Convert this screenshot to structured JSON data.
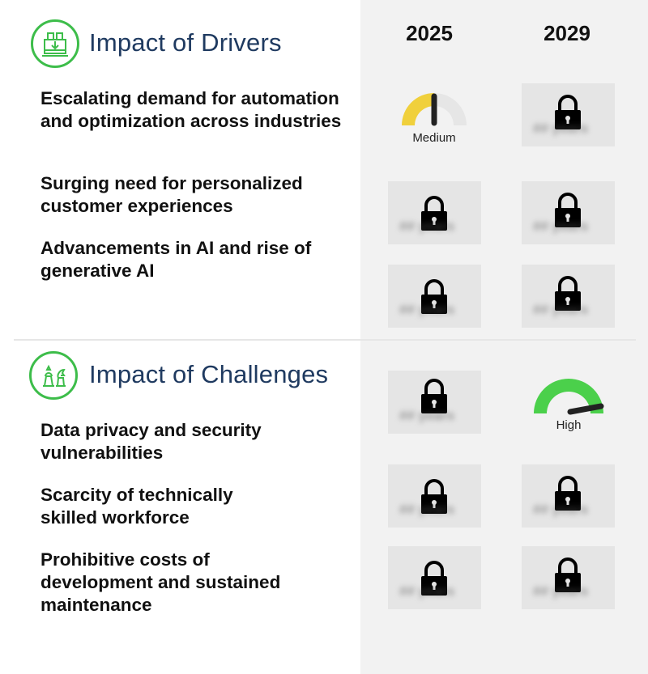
{
  "columns": [
    "2025",
    "2029"
  ],
  "drivers": {
    "title": "Impact of Drivers",
    "icon": "factory-icon",
    "items": [
      {
        "label": "Escalating demand for automation and optimization across industries",
        "y2025": {
          "locked": false,
          "level": "Medium",
          "fraction": 0.5,
          "color": "#f0d03c"
        },
        "y2029": {
          "locked": true,
          "teaser": "## years"
        }
      },
      {
        "label": "Surging need for personalized customer experiences",
        "y2025": {
          "locked": true,
          "teaser": "## years"
        },
        "y2029": {
          "locked": true,
          "teaser": "## years"
        }
      },
      {
        "label": "Advancements in AI and rise of generative AI",
        "y2025": {
          "locked": true,
          "teaser": "## years"
        },
        "y2029": {
          "locked": true,
          "teaser": "## years"
        }
      }
    ]
  },
  "challenges": {
    "title": "Impact of Challenges",
    "icon": "chess-icon",
    "header_row": {
      "y2025": {
        "locked": true,
        "teaser": "## years"
      },
      "y2029": {
        "locked": false,
        "level": "High",
        "fraction": 1.0,
        "color": "#4bd04b"
      }
    },
    "items": [
      {
        "label": "Data privacy and security vulnerabilities",
        "y2025": {
          "locked": true,
          "teaser": "## years"
        },
        "y2029": {
          "locked": true,
          "teaser": "## years"
        }
      },
      {
        "label": "Scarcity of technically skilled workforce",
        "y2025": {
          "locked": true,
          "teaser": "## years"
        },
        "y2029": {
          "locked": true,
          "teaser": "## years"
        }
      },
      {
        "label": "Prohibitive costs of development and sustained maintenance",
        "y2025": {
          "locked": true,
          "teaser": "## years"
        },
        "y2029": {
          "locked": true,
          "teaser": "## years"
        }
      }
    ]
  },
  "colors": {
    "accent_green": "#3dbd4a",
    "title_navy": "#1f3a60",
    "gauge_track": "#e6e6e6",
    "needle": "#222222"
  }
}
